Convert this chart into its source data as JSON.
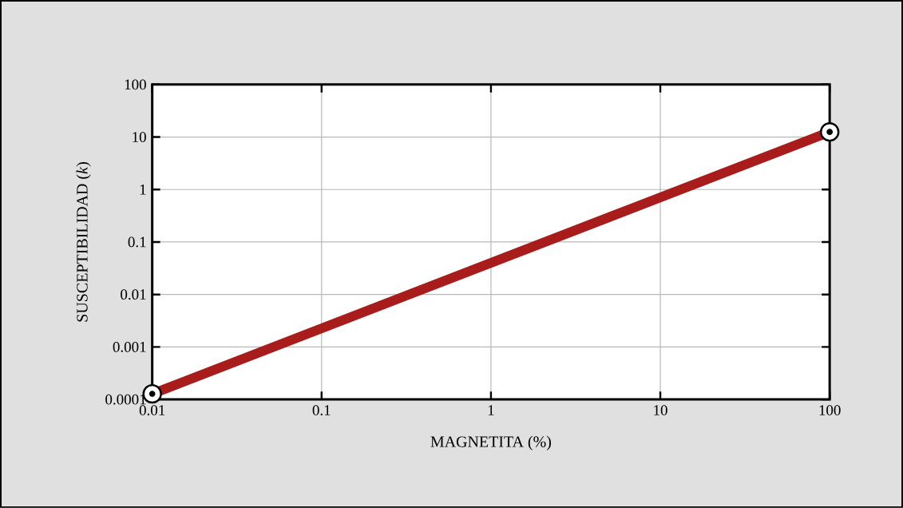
{
  "chart_data": {
    "type": "line",
    "xlabel": "MAGNETITA (%)",
    "ylabel": "SUSCEPTIBILIDAD  (*k*)",
    "x": [
      0.01,
      100
    ],
    "series": [
      {
        "color": "#a81c1c",
        "values": [
          0.000128,
          12.5
        ]
      }
    ],
    "xlim": [
      0.01,
      100
    ],
    "ylim": [
      0.0001,
      100
    ],
    "xticks": [
      0.01,
      0.1,
      1,
      10,
      100
    ],
    "yticks": [
      0.0001,
      0.001,
      0.01,
      0.1,
      1,
      10,
      100
    ],
    "log": "xy",
    "grid": true,
    "marker": "circle",
    "line_style": "solid"
  }
}
